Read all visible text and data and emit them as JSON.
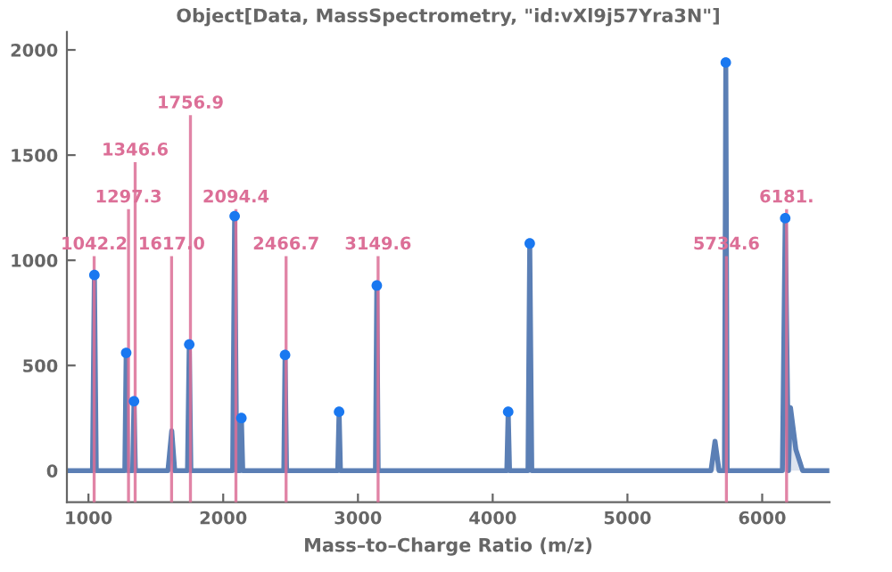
{
  "chart_data": {
    "type": "area",
    "title": "Object[Data, MassSpectrometry, \"id:vXl9j57Yra3N\"]",
    "xlabel": "Mass–to–Charge Ratio (m/z)",
    "xlim": [
      840,
      6500
    ],
    "ylim": [
      -150,
      2085
    ],
    "xticks": [
      1000,
      2000,
      3000,
      4000,
      5000,
      6000
    ],
    "yticks": [
      0,
      500,
      1000,
      1500,
      2000
    ],
    "grid": false,
    "legend": false,
    "series": [
      {
        "color": "#5b7fb5",
        "x": [
          840,
          1030,
          1044,
          1058,
          1270,
          1280,
          1290,
          1328,
          1338,
          1348,
          1590,
          1618,
          1640,
          1735,
          1748,
          1760,
          2070,
          2085,
          2100,
          2125,
          2135,
          2145,
          2450,
          2459,
          2470,
          2850,
          2860,
          2870,
          3130,
          3140,
          3150,
          4105,
          4115,
          4125,
          4262,
          4275,
          4290,
          5620,
          5650,
          5680,
          5720,
          5730,
          5740,
          6150,
          6171,
          6195,
          6210,
          6250,
          6300,
          6480
        ],
        "values": [
          0,
          0,
          930,
          0,
          0,
          560,
          0,
          0,
          330,
          0,
          0,
          190,
          0,
          0,
          600,
          0,
          0,
          1210,
          0,
          0,
          250,
          0,
          0,
          550,
          0,
          0,
          280,
          0,
          0,
          880,
          0,
          0,
          280,
          0,
          0,
          1080,
          0,
          0,
          140,
          0,
          0,
          1940,
          0,
          0,
          1200,
          0,
          300,
          100,
          0,
          0
        ]
      },
      {
        "type": "scatter",
        "color": "#1a78f0",
        "marker": "circle",
        "x": [
          1044,
          1280,
          1338,
          1748,
          2085,
          2135,
          2459,
          2860,
          3140,
          4115,
          4275,
          5730,
          6171
        ],
        "values": [
          930,
          560,
          330,
          600,
          1210,
          250,
          550,
          280,
          880,
          280,
          1080,
          1940,
          1200
        ]
      }
    ],
    "ref_lines": [
      {
        "axis": "x",
        "value": 1042.2,
        "label": "1042.2",
        "color": "#dc6f97"
      },
      {
        "axis": "x",
        "value": 1297.3,
        "label": "1297.3",
        "color": "#dc6f97"
      },
      {
        "axis": "x",
        "value": 1346.6,
        "label": "1346.6",
        "color": "#dc6f97"
      },
      {
        "axis": "x",
        "value": 1617.0,
        "label": "1617.0",
        "color": "#dc6f97"
      },
      {
        "axis": "x",
        "value": 1756.9,
        "label": "1756.9",
        "color": "#dc6f97"
      },
      {
        "axis": "x",
        "value": 2094.4,
        "label": "2094.4",
        "color": "#dc6f97"
      },
      {
        "axis": "x",
        "value": 2466.7,
        "label": "2466.7",
        "color": "#dc6f97"
      },
      {
        "axis": "x",
        "value": 3149.6,
        "label": "3149.6",
        "color": "#dc6f97"
      },
      {
        "axis": "x",
        "value": 5734.6,
        "label": "5734.6",
        "color": "#dc6f97"
      },
      {
        "axis": "x",
        "value": 6181,
        "label": "6181.",
        "color": "#dc6f97"
      }
    ]
  }
}
